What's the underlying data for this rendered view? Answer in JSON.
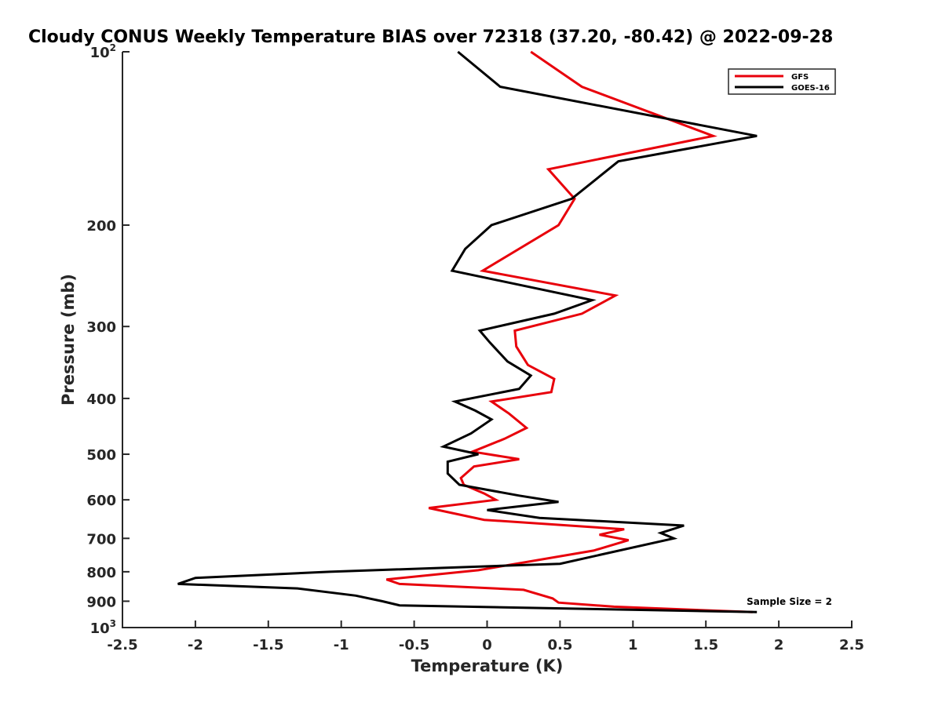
{
  "chart_data": {
    "type": "line",
    "title": "Cloudy CONUS Weekly Temperature BIAS over 72318 (37.20, -80.42) @ 2022-09-28",
    "xlabel": "Temperature (K)",
    "ylabel": "Pressure (mb)",
    "xlim": [
      -2.5,
      2.5
    ],
    "ylim": [
      100,
      1000
    ],
    "y_scale": "log",
    "y_reversed": true,
    "x_ticks": [
      -2.5,
      -2,
      -1.5,
      -1,
      -0.5,
      0,
      0.5,
      1,
      1.5,
      2,
      2.5
    ],
    "x_tick_labels": [
      "-2.5",
      "-2",
      "-1.5",
      "-1",
      "-0.5",
      "0",
      "0.5",
      "1",
      "1.5",
      "2",
      "2.5"
    ],
    "y_ticks": [
      100,
      200,
      300,
      400,
      500,
      600,
      700,
      800,
      900,
      1000
    ],
    "y_tick_labels": [
      {
        "base": "10",
        "sup": "2"
      },
      {
        "base": "200",
        "sup": ""
      },
      {
        "base": "300",
        "sup": ""
      },
      {
        "base": "400",
        "sup": ""
      },
      {
        "base": "500",
        "sup": ""
      },
      {
        "base": "600",
        "sup": ""
      },
      {
        "base": "700",
        "sup": ""
      },
      {
        "base": "800",
        "sup": ""
      },
      {
        "base": "900",
        "sup": ""
      },
      {
        "base": "10",
        "sup": "3"
      }
    ],
    "grid": false,
    "legend_position": "top-right",
    "annotation": "Sample Size = 2",
    "series": [
      {
        "name": "GFS",
        "color": "#e8000b",
        "points": [
          [
            0.3,
            100
          ],
          [
            0.65,
            115
          ],
          [
            1.55,
            140
          ],
          [
            0.42,
            160
          ],
          [
            0.6,
            180
          ],
          [
            0.49,
            200
          ],
          [
            -0.03,
            240
          ],
          [
            0.88,
            265
          ],
          [
            0.65,
            285
          ],
          [
            0.19,
            305
          ],
          [
            0.2,
            325
          ],
          [
            0.28,
            350
          ],
          [
            0.46,
            370
          ],
          [
            0.44,
            390
          ],
          [
            0.03,
            405
          ],
          [
            0.15,
            425
          ],
          [
            0.27,
            450
          ],
          [
            0.12,
            470
          ],
          [
            -0.1,
            495
          ],
          [
            0.22,
            510
          ],
          [
            -0.09,
            525
          ],
          [
            -0.18,
            550
          ],
          [
            -0.16,
            565
          ],
          [
            -0.02,
            585
          ],
          [
            0.06,
            600
          ],
          [
            -0.4,
            620
          ],
          [
            -0.02,
            650
          ],
          [
            0.94,
            675
          ],
          [
            0.77,
            690
          ],
          [
            0.97,
            705
          ],
          [
            0.73,
            735
          ],
          [
            -0.06,
            795
          ],
          [
            -0.69,
            825
          ],
          [
            -0.6,
            840
          ],
          [
            0.25,
            860
          ],
          [
            0.45,
            890
          ],
          [
            0.49,
            905
          ],
          [
            0.87,
            920
          ],
          [
            1.82,
            940
          ]
        ]
      },
      {
        "name": "GOES-16",
        "color": "#000000",
        "points": [
          [
            -0.2,
            100
          ],
          [
            0.09,
            115
          ],
          [
            1.85,
            140
          ],
          [
            0.9,
            155
          ],
          [
            0.58,
            180
          ],
          [
            0.03,
            200
          ],
          [
            -0.15,
            220
          ],
          [
            -0.24,
            240
          ],
          [
            0.72,
            270
          ],
          [
            0.46,
            285
          ],
          [
            -0.05,
            305
          ],
          [
            0.02,
            320
          ],
          [
            0.14,
            345
          ],
          [
            0.3,
            365
          ],
          [
            0.22,
            385
          ],
          [
            -0.22,
            405
          ],
          [
            -0.08,
            420
          ],
          [
            0.03,
            435
          ],
          [
            -0.11,
            460
          ],
          [
            -0.3,
            485
          ],
          [
            -0.06,
            500
          ],
          [
            -0.27,
            515
          ],
          [
            -0.27,
            540
          ],
          [
            -0.19,
            565
          ],
          [
            0.22,
            590
          ],
          [
            0.49,
            605
          ],
          [
            0.0,
            625
          ],
          [
            0.36,
            645
          ],
          [
            1.35,
            665
          ],
          [
            1.19,
            685
          ],
          [
            1.28,
            700
          ],
          [
            0.5,
            775
          ],
          [
            -1.08,
            800
          ],
          [
            -2.0,
            820
          ],
          [
            -2.12,
            840
          ],
          [
            -1.3,
            855
          ],
          [
            -0.9,
            880
          ],
          [
            -0.72,
            900
          ],
          [
            -0.6,
            915
          ],
          [
            1.85,
            940
          ]
        ]
      }
    ]
  }
}
